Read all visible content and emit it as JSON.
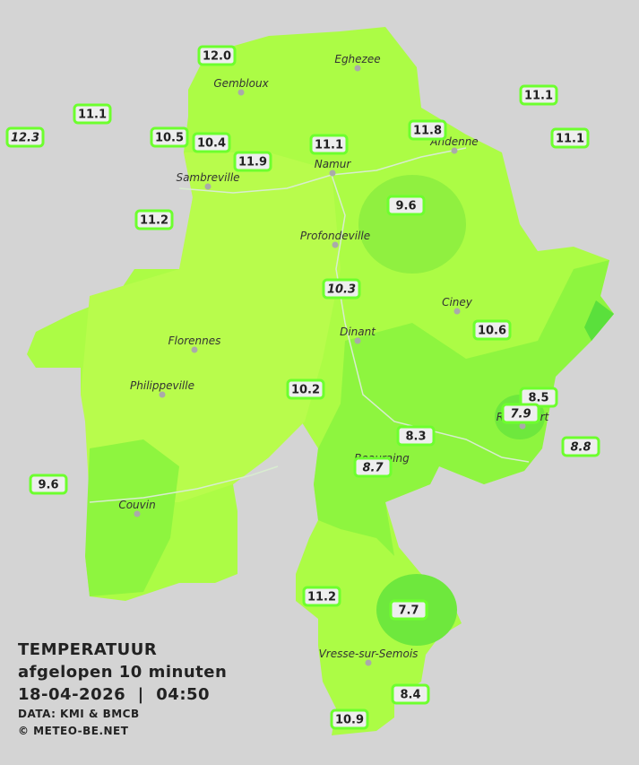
{
  "map": {
    "title": [
      "TEMPERATUUR",
      "afgelopen 10 minuten",
      "18-04-2026  |  04:50"
    ],
    "credits": [
      "DATA: KMI & BMCB",
      "© METEO-BE.NET"
    ],
    "cities": [
      "Eghezee",
      "Gembloux",
      "Andenne",
      "Namur",
      "Sambreville",
      "Profondeville",
      "Ciney",
      "Dinant",
      "Florennes",
      "Philippeville",
      "Rochefort",
      "Beauraing",
      "Couvin",
      "Vresse-sur-Semois"
    ],
    "stations": [
      {
        "label": "12.0"
      },
      {
        "label": "11.1"
      },
      {
        "label": "12.3",
        "italic": true
      },
      {
        "label": "10.5"
      },
      {
        "label": "10.4"
      },
      {
        "label": "11.9"
      },
      {
        "label": "11.1"
      },
      {
        "label": "11.8"
      },
      {
        "label": "11.1"
      },
      {
        "label": "11.1"
      },
      {
        "label": "11.2"
      },
      {
        "label": "9.6"
      },
      {
        "label": "10.3",
        "italic": true
      },
      {
        "label": "10.6"
      },
      {
        "label": "10.2"
      },
      {
        "label": "8.5"
      },
      {
        "label": "7.9",
        "italic": true
      },
      {
        "label": "8.8",
        "italic": true
      },
      {
        "label": "8.3"
      },
      {
        "label": "8.7",
        "italic": true
      },
      {
        "label": "9.6"
      },
      {
        "label": "11.2"
      },
      {
        "label": "7.7"
      },
      {
        "label": "8.4"
      },
      {
        "label": "10.9"
      }
    ]
  }
}
